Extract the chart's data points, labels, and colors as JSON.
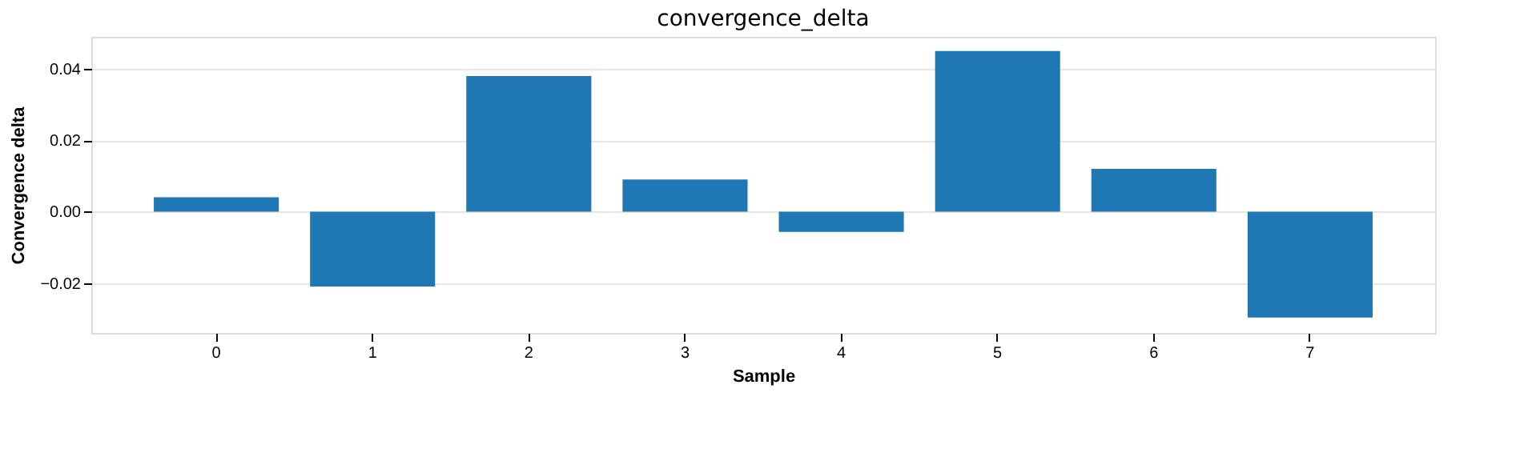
{
  "chart_data": {
    "type": "bar",
    "title": "convergence_delta",
    "xlabel": "Sample",
    "ylabel": "Convergence delta",
    "categories": [
      "0",
      "1",
      "2",
      "3",
      "4",
      "5",
      "6",
      "7"
    ],
    "values": [
      0.004,
      -0.021,
      0.038,
      0.009,
      -0.0057,
      0.045,
      0.012,
      -0.0297
    ],
    "color": "#1f77b4",
    "ylim": [
      -0.034,
      0.049
    ],
    "yticks": [
      {
        "value": -0.02,
        "label": "−0.02"
      },
      {
        "value": 0.0,
        "label": "0.00"
      },
      {
        "value": 0.02,
        "label": "0.02"
      },
      {
        "value": 0.04,
        "label": "0.04"
      }
    ],
    "grid": "y"
  }
}
